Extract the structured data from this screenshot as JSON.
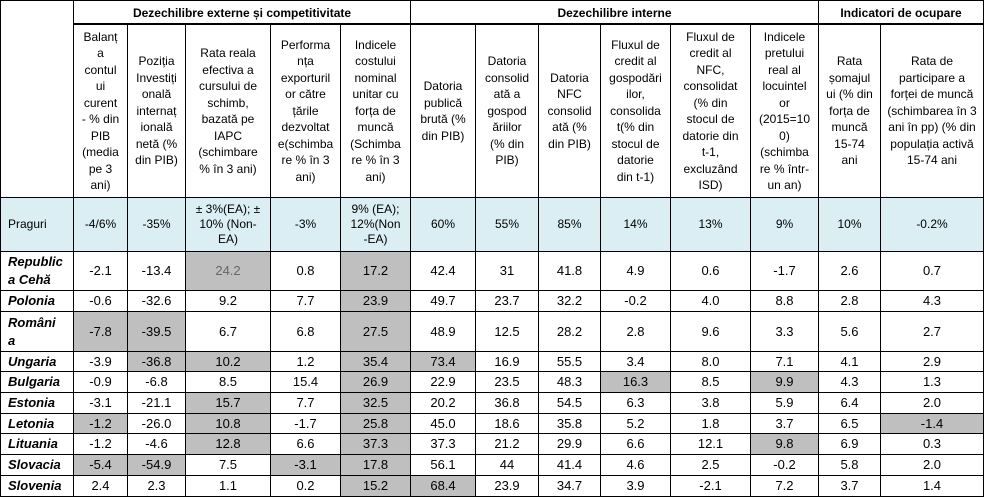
{
  "table": {
    "groups": {
      "external": "Dezechilibre externe și competitivitate",
      "internal": "Dezechilibre interne",
      "employment": "Indicatori de ocupare"
    },
    "columns": [
      "Balanț\na\ncontul\nui\ncurent\n- % din\nPIB\n(media\npe 3\nani)",
      "Poziția\nInvestiți\nonală\ninternaț\nională\nnetă (%\ndin PIB)",
      "Rata reala\nefectiva a\ncursului de\nschimb,\nbazată pe\nIAPC\n(schimbare\n% în 3 ani)",
      "Performa\nnța\nexporturil\nor către\nțările\ndezvoltat\ne(schimba\nre % în 3\nani)",
      "Indicele\ncostului\nnominal\nunitar cu\nforța de\nmuncă\n(Schimba\nre % în 3\nani)",
      "Datoria\npublică\nbrută (%\ndin PIB)",
      "Datoria\nconsolid\nată a\ngospod\năriilor\n(% din\nPIB)",
      "Datoria\nNFC\nconsolid\nată (%\ndin PIB)",
      "Fluxul de\ncredit al\ngospodări\nilor,\nconsolida\nt(% din\nstocul de\ndatorie\ndin t-1)",
      "Fluxul de\ncredit al\nNFC,\nconsolidat\n(% din\nstocul de\ndatorie din\nt-1,\nexcluzând\nISD)",
      "Indicele\npretului\nreal al\nlocuintel\nor\n(2015=10\n0)\n(schimba\nre % într-\nun an)",
      "Rata\nșomajul\nui (% din\nforța de\nmuncă\n15-74\nani",
      "Rata de\nparticipare a\nforței de muncă\n(schimbarea în 3\nani în pp) (% din\npopulația activă\n15-74 ani"
    ],
    "thresholds": {
      "label": "Praguri",
      "values": [
        "-4/6%",
        "-35%",
        "± 3%(EA); ±\n10% (Non-\nEA)",
        "-3%",
        "9% (EA);\n12%(Non\n-EA)",
        "60%",
        "55%",
        "85%",
        "14%",
        "13%",
        "9%",
        "10%",
        "-0.2%"
      ]
    },
    "rows": [
      {
        "country": "Republic\na Cehă",
        "values": [
          "-2.1",
          "-13.4",
          "24.2",
          "0.8",
          "17.2",
          "42.4",
          "31",
          "41.8",
          "4.9",
          "0.6",
          "-1.7",
          "2.6",
          "0.7"
        ],
        "highlighted": [
          2,
          4
        ],
        "muted": [
          2
        ]
      },
      {
        "country": "Polonia",
        "values": [
          "-0.6",
          "-32.6",
          "9.2",
          "7.7",
          "23.9",
          "49.7",
          "23.7",
          "32.2",
          "-0.2",
          "4.0",
          "8.8",
          "2.8",
          "4.3"
        ],
        "highlighted": [
          4
        ]
      },
      {
        "country": "Români\na",
        "values": [
          "-7.8",
          "-39.5",
          "6.7",
          "6.8",
          "27.5",
          "48.9",
          "12.5",
          "28.2",
          "2.8",
          "9.6",
          "3.3",
          "5.6",
          "2.7"
        ],
        "highlighted": [
          0,
          1,
          4
        ]
      },
      {
        "country": "Ungaria",
        "values": [
          "-3.9",
          "-36.8",
          "10.2",
          "1.2",
          "35.4",
          "73.4",
          "16.9",
          "55.5",
          "3.4",
          "8.0",
          "7.1",
          "4.1",
          "2.9"
        ],
        "highlighted": [
          1,
          2,
          4,
          5
        ]
      },
      {
        "country": "Bulgaria",
        "values": [
          "-0.9",
          "-6.8",
          "8.5",
          "15.4",
          "26.9",
          "22.9",
          "23.5",
          "48.3",
          "16.3",
          "8.5",
          "9.9",
          "4.3",
          "1.3"
        ],
        "highlighted": [
          4,
          8,
          10
        ]
      },
      {
        "country": "Estonia",
        "values": [
          "-3.1",
          "-21.1",
          "15.7",
          "7.7",
          "32.5",
          "20.2",
          "36.8",
          "54.5",
          "6.3",
          "3.8",
          "5.9",
          "6.4",
          "2.0"
        ],
        "highlighted": [
          2,
          4
        ]
      },
      {
        "country": "Letonia",
        "values": [
          "-1.2",
          "-26.0",
          "10.8",
          "-1.7",
          "25.8",
          "45.0",
          "18.6",
          "35.8",
          "5.2",
          "1.8",
          "3.7",
          "6.5",
          "-1.4"
        ],
        "highlighted": [
          0,
          2,
          4,
          12
        ]
      },
      {
        "country": "Lituania",
        "values": [
          "-1.2",
          "-4.6",
          "12.8",
          "6.6",
          "37.3",
          "37.3",
          "21.2",
          "29.9",
          "6.6",
          "12.1",
          "9.8",
          "6.9",
          "0.3"
        ],
        "highlighted": [
          2,
          4,
          10
        ]
      },
      {
        "country": "Slovacia",
        "values": [
          "-5.4",
          "-54.9",
          "7.5",
          "-3.1",
          "17.8",
          "56.1",
          "44",
          "41.4",
          "4.6",
          "2.5",
          "-0.2",
          "5.8",
          "2.0"
        ],
        "highlighted": [
          0,
          1,
          3,
          4
        ]
      },
      {
        "country": "Slovenia",
        "values": [
          "2.4",
          "2.3",
          "1.1",
          "0.2",
          "15.2",
          "68.4",
          "23.9",
          "34.7",
          "3.9",
          "-2.1",
          "7.2",
          "3.7",
          "1.4"
        ],
        "highlighted": [
          4,
          5
        ]
      }
    ]
  },
  "colors": {
    "border": "#000000",
    "threshold_bg": "#DAEEF3",
    "highlight_bg": "#BFBFBF",
    "muted_text": "#666666"
  }
}
